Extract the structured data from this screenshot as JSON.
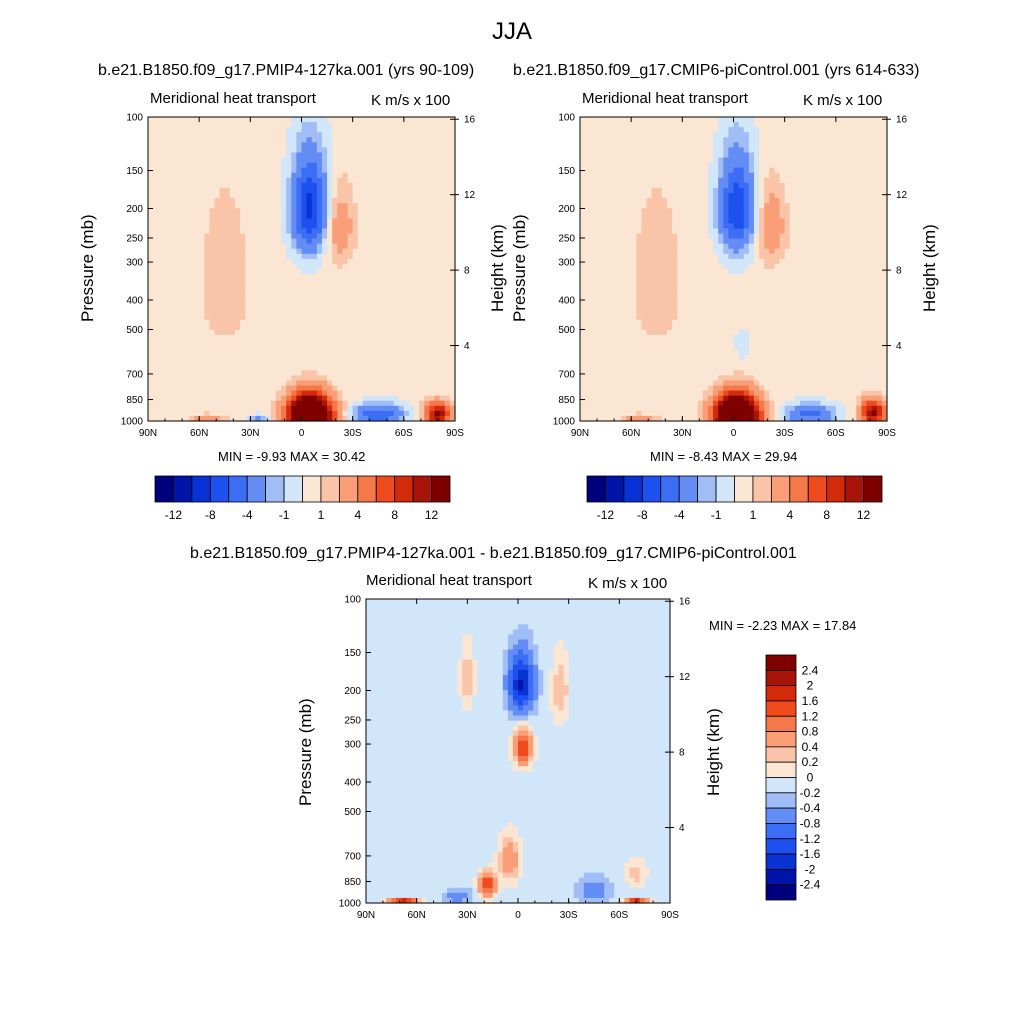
{
  "title": "JJA",
  "chart_data": [
    {
      "type": "heatmap",
      "id": "p1",
      "subtitle": "b.e21.B1850.f09_g17.PMIP4-127ka.001 (yrs 90-109)",
      "panel_label": "Meridional heat transport",
      "units_label": "K m/s x 100",
      "ylabel": "Pressure (mb)",
      "y2label": "Height (km)",
      "x_ticks": [
        "90N",
        "60N",
        "30N",
        "0",
        "30S",
        "60S",
        "90S"
      ],
      "y_ticks": [
        {
          "v": 100,
          "label": "100"
        },
        {
          "v": 150,
          "label": "150"
        },
        {
          "v": 200,
          "label": "200"
        },
        {
          "v": 250,
          "label": "250"
        },
        {
          "v": 300,
          "label": "300"
        },
        {
          "v": 400,
          "label": "400"
        },
        {
          "v": 500,
          "label": "500"
        },
        {
          "v": 700,
          "label": "700"
        },
        {
          "v": 850,
          "label": "850"
        },
        {
          "v": 1000,
          "label": "1000"
        }
      ],
      "y2_ticks": [
        {
          "v": 16,
          "label": "16"
        },
        {
          "v": 12,
          "label": "12"
        },
        {
          "v": 8,
          "label": "8"
        },
        {
          "v": 4,
          "label": "4"
        }
      ],
      "min_max_text": "MIN = -9.93  MAX = 30.42",
      "min": -9.93,
      "max": 30.42,
      "colorbar_labels": [
        "-12",
        "-8",
        "-4",
        "-1",
        "1",
        "4",
        "8",
        "12"
      ],
      "features": [
        {
          "lat": -5,
          "p": 200,
          "v": -9,
          "rlat": 10,
          "rp": 70
        },
        {
          "lat": -22,
          "p": 230,
          "v": 3,
          "rlat": 9,
          "rp": 70
        },
        {
          "lat": -5,
          "p": 960,
          "v": 28,
          "rlat": 12,
          "rp": 140
        },
        {
          "lat": -45,
          "p": 950,
          "v": -6,
          "rlat": 14,
          "rp": 70
        },
        {
          "lat": -80,
          "p": 950,
          "v": 12,
          "rlat": 7,
          "rp": 80
        },
        {
          "lat": 55,
          "p": 980,
          "v": 3,
          "rlat": 10,
          "rp": 30
        },
        {
          "lat": 25,
          "p": 980,
          "v": -3,
          "rlat": 5,
          "rp": 25
        },
        {
          "lat": 45,
          "p": 350,
          "v": 1,
          "rlat": 22,
          "rp": 300
        }
      ]
    },
    {
      "type": "heatmap",
      "id": "p2",
      "subtitle": "b.e21.B1850.f09_g17.CMIP6-piControl.001 (yrs 614-633)",
      "panel_label": "Meridional heat transport",
      "units_label": "K m/s x 100",
      "ylabel": "Pressure (mb)",
      "y2label": "Height (km)",
      "x_ticks": [
        "90N",
        "60N",
        "30N",
        "0",
        "30S",
        "60S",
        "90S"
      ],
      "y_ticks": [
        {
          "v": 100,
          "label": "100"
        },
        {
          "v": 150,
          "label": "150"
        },
        {
          "v": 200,
          "label": "200"
        },
        {
          "v": 250,
          "label": "250"
        },
        {
          "v": 300,
          "label": "300"
        },
        {
          "v": 400,
          "label": "400"
        },
        {
          "v": 500,
          "label": "500"
        },
        {
          "v": 700,
          "label": "700"
        },
        {
          "v": 850,
          "label": "850"
        },
        {
          "v": 1000,
          "label": "1000"
        }
      ],
      "y2_ticks": [
        {
          "v": 16,
          "label": "16"
        },
        {
          "v": 12,
          "label": "12"
        },
        {
          "v": 8,
          "label": "8"
        },
        {
          "v": 4,
          "label": "4"
        }
      ],
      "min_max_text": "MIN = -8.43  MAX = 29.94",
      "min": -8.43,
      "max": 29.94,
      "colorbar_labels": [
        "-12",
        "-8",
        "-4",
        "-1",
        "1",
        "4",
        "8",
        "12"
      ],
      "features": [
        {
          "lat": -2,
          "p": 200,
          "v": -8,
          "rlat": 10,
          "rp": 70
        },
        {
          "lat": -22,
          "p": 230,
          "v": 3,
          "rlat": 9,
          "rp": 70
        },
        {
          "lat": -2,
          "p": 960,
          "v": 27,
          "rlat": 12,
          "rp": 140
        },
        {
          "lat": -45,
          "p": 950,
          "v": -5,
          "rlat": 14,
          "rp": 70
        },
        {
          "lat": -82,
          "p": 940,
          "v": 12,
          "rlat": 7,
          "rp": 90
        },
        {
          "lat": 55,
          "p": 980,
          "v": 3,
          "rlat": 10,
          "rp": 30
        },
        {
          "lat": -5,
          "p": 560,
          "v": -1,
          "rlat": 4,
          "rp": 60
        },
        {
          "lat": 45,
          "p": 350,
          "v": 1,
          "rlat": 22,
          "rp": 300
        }
      ]
    },
    {
      "type": "heatmap",
      "id": "p3",
      "subtitle": "b.e21.B1850.f09_g17.PMIP4-127ka.001 - b.e21.B1850.f09_g17.CMIP6-piControl.001",
      "panel_label": "Meridional heat transport",
      "units_label": "K m/s x 100",
      "ylabel": "Pressure (mb)",
      "y2label": "Height (km)",
      "x_ticks": [
        "90N",
        "60N",
        "30N",
        "0",
        "30S",
        "60S",
        "90S"
      ],
      "y_ticks": [
        {
          "v": 100,
          "label": "100"
        },
        {
          "v": 150,
          "label": "150"
        },
        {
          "v": 200,
          "label": "200"
        },
        {
          "v": 250,
          "label": "250"
        },
        {
          "v": 300,
          "label": "300"
        },
        {
          "v": 400,
          "label": "400"
        },
        {
          "v": 500,
          "label": "500"
        },
        {
          "v": 700,
          "label": "700"
        },
        {
          "v": 850,
          "label": "850"
        },
        {
          "v": 1000,
          "label": "1000"
        }
      ],
      "y2_ticks": [
        {
          "v": 16,
          "label": "16"
        },
        {
          "v": 12,
          "label": "12"
        },
        {
          "v": 8,
          "label": "8"
        },
        {
          "v": 4,
          "label": "4"
        }
      ],
      "min_max_text": "MIN = -2.23  MAX = 17.84",
      "min": -2.23,
      "max": 17.84,
      "colorbar_labels": [
        "2.4",
        "2",
        "1.6",
        "1.2",
        "0.8",
        "0.4",
        "0.2",
        "0",
        "-0.2",
        "-0.4",
        "-0.8",
        "-1.2",
        "-1.6",
        "-2",
        "-2.4"
      ],
      "features": [
        {
          "lat": -2,
          "p": 190,
          "v": -2,
          "rlat": 7,
          "rp": 40
        },
        {
          "lat": -3,
          "p": 310,
          "v": 1.6,
          "rlat": 5,
          "rp": 40
        },
        {
          "lat": -25,
          "p": 200,
          "v": 0.5,
          "rlat": 5,
          "rp": 50
        },
        {
          "lat": 30,
          "p": 180,
          "v": 0.5,
          "rlat": 4,
          "rp": 40
        },
        {
          "lat": 18,
          "p": 870,
          "v": 1.8,
          "rlat": 5,
          "rp": 70
        },
        {
          "lat": 5,
          "p": 720,
          "v": 0.8,
          "rlat": 6,
          "rp": 120
        },
        {
          "lat": 68,
          "p": 990,
          "v": 2.5,
          "rlat": 8,
          "rp": 15
        },
        {
          "lat": -70,
          "p": 990,
          "v": 2.5,
          "rlat": 6,
          "rp": 15
        },
        {
          "lat": -45,
          "p": 900,
          "v": -0.5,
          "rlat": 10,
          "rp": 80
        },
        {
          "lat": 35,
          "p": 950,
          "v": -0.5,
          "rlat": 8,
          "rp": 50
        },
        {
          "lat": -70,
          "p": 800,
          "v": 0.4,
          "rlat": 6,
          "rp": 80
        }
      ]
    }
  ]
}
